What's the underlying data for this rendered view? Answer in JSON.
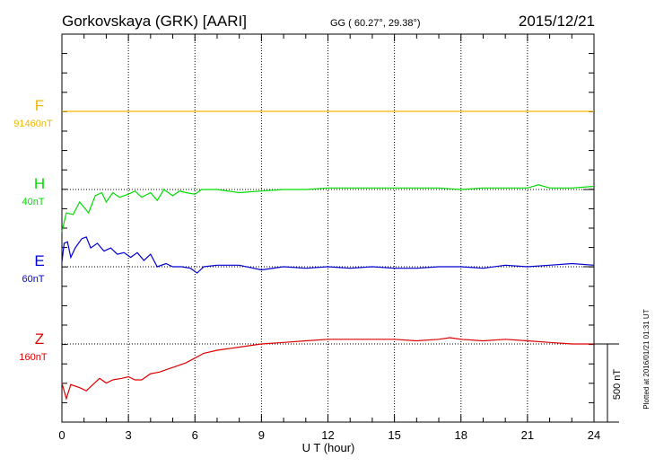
{
  "header": {
    "station": "Gorkovskaya (GRK)  [AARI]",
    "coords": "GG ( 60.27°,  29.38°)",
    "date": "2015/12/21"
  },
  "side_note": "Plotted at 2016/01/21 01:31  UT",
  "scale_label": "500 nT",
  "chart_data": {
    "type": "line",
    "xlabel": "U T (hour)",
    "xlim": [
      0,
      24
    ],
    "x_ticks": [
      "0",
      "3",
      "6",
      "9",
      "12",
      "15",
      "18",
      "21",
      "24"
    ],
    "scale_bar_nT": 500,
    "grid": "dotted vertical every 3 h; dotted baseline per trace",
    "series": [
      {
        "name": "F",
        "baseline_label": "91460nT",
        "color": "#f2b600",
        "points": [
          [
            0,
            0
          ],
          [
            24,
            0
          ]
        ]
      },
      {
        "name": "H",
        "baseline_label": "40nT",
        "color": "#00dd00",
        "points": [
          [
            0,
            -270
          ],
          [
            0.2,
            -150
          ],
          [
            0.5,
            -160
          ],
          [
            0.8,
            -80
          ],
          [
            1.2,
            -150
          ],
          [
            1.5,
            -40
          ],
          [
            1.8,
            -20
          ],
          [
            2.0,
            -80
          ],
          [
            2.3,
            -20
          ],
          [
            2.6,
            -50
          ],
          [
            3.0,
            -30
          ],
          [
            3.3,
            -10
          ],
          [
            3.6,
            -50
          ],
          [
            4.0,
            -20
          ],
          [
            4.3,
            -70
          ],
          [
            4.6,
            0
          ],
          [
            5.0,
            -40
          ],
          [
            5.3,
            -10
          ],
          [
            5.6,
            -20
          ],
          [
            6.0,
            -30
          ],
          [
            6.3,
            0
          ],
          [
            7.0,
            0
          ],
          [
            8.0,
            -20
          ],
          [
            9.0,
            -10
          ],
          [
            10.0,
            0
          ],
          [
            11.0,
            0
          ],
          [
            12.0,
            10
          ],
          [
            13.0,
            10
          ],
          [
            14.0,
            10
          ],
          [
            15.0,
            10
          ],
          [
            16.0,
            10
          ],
          [
            17.0,
            10
          ],
          [
            18.0,
            0
          ],
          [
            19.0,
            10
          ],
          [
            20.0,
            10
          ],
          [
            21.0,
            10
          ],
          [
            21.5,
            30
          ],
          [
            22.0,
            10
          ],
          [
            23.0,
            10
          ],
          [
            24.0,
            20
          ]
        ]
      },
      {
        "name": "E",
        "baseline_label": "60nT",
        "color": "#0000d0",
        "points": [
          [
            0,
            30
          ],
          [
            0.1,
            150
          ],
          [
            0.25,
            160
          ],
          [
            0.4,
            60
          ],
          [
            0.6,
            120
          ],
          [
            0.9,
            180
          ],
          [
            1.1,
            190
          ],
          [
            1.3,
            120
          ],
          [
            1.6,
            150
          ],
          [
            1.9,
            100
          ],
          [
            2.2,
            120
          ],
          [
            2.5,
            80
          ],
          [
            2.8,
            90
          ],
          [
            3.1,
            60
          ],
          [
            3.4,
            90
          ],
          [
            3.7,
            40
          ],
          [
            4.0,
            80
          ],
          [
            4.3,
            0
          ],
          [
            4.7,
            20
          ],
          [
            5.0,
            0
          ],
          [
            5.4,
            0
          ],
          [
            5.8,
            -10
          ],
          [
            6.1,
            -40
          ],
          [
            6.4,
            0
          ],
          [
            7.0,
            10
          ],
          [
            8.0,
            10
          ],
          [
            9.0,
            -20
          ],
          [
            10.0,
            0
          ],
          [
            11.0,
            -10
          ],
          [
            12.0,
            0
          ],
          [
            13.0,
            -10
          ],
          [
            14.0,
            0
          ],
          [
            15.0,
            -10
          ],
          [
            16.0,
            -10
          ],
          [
            17.0,
            0
          ],
          [
            18.0,
            0
          ],
          [
            19.0,
            -10
          ],
          [
            20.0,
            10
          ],
          [
            21.0,
            0
          ],
          [
            22.0,
            10
          ],
          [
            23.0,
            20
          ],
          [
            24.0,
            10
          ]
        ]
      },
      {
        "name": "Z",
        "baseline_label": "160nT",
        "color": "#dd0000",
        "points": [
          [
            0,
            -250
          ],
          [
            0.2,
            -350
          ],
          [
            0.4,
            -260
          ],
          [
            0.8,
            -280
          ],
          [
            1.1,
            -300
          ],
          [
            1.4,
            -260
          ],
          [
            1.7,
            -220
          ],
          [
            2.0,
            -250
          ],
          [
            2.3,
            -230
          ],
          [
            2.7,
            -220
          ],
          [
            3.0,
            -210
          ],
          [
            3.3,
            -230
          ],
          [
            3.6,
            -230
          ],
          [
            4.0,
            -190
          ],
          [
            4.4,
            -180
          ],
          [
            4.8,
            -160
          ],
          [
            5.2,
            -140
          ],
          [
            5.6,
            -120
          ],
          [
            6.0,
            -90
          ],
          [
            6.4,
            -60
          ],
          [
            7.0,
            -40
          ],
          [
            8.0,
            -20
          ],
          [
            9.0,
            0
          ],
          [
            10.0,
            10
          ],
          [
            11.0,
            20
          ],
          [
            12.0,
            30
          ],
          [
            13.0,
            30
          ],
          [
            14.0,
            30
          ],
          [
            15.0,
            30
          ],
          [
            16.0,
            20
          ],
          [
            17.0,
            30
          ],
          [
            17.5,
            40
          ],
          [
            18.0,
            30
          ],
          [
            19.0,
            20
          ],
          [
            20.0,
            30
          ],
          [
            21.0,
            20
          ],
          [
            22.0,
            10
          ],
          [
            23.0,
            0
          ],
          [
            24.0,
            0
          ]
        ]
      }
    ]
  }
}
